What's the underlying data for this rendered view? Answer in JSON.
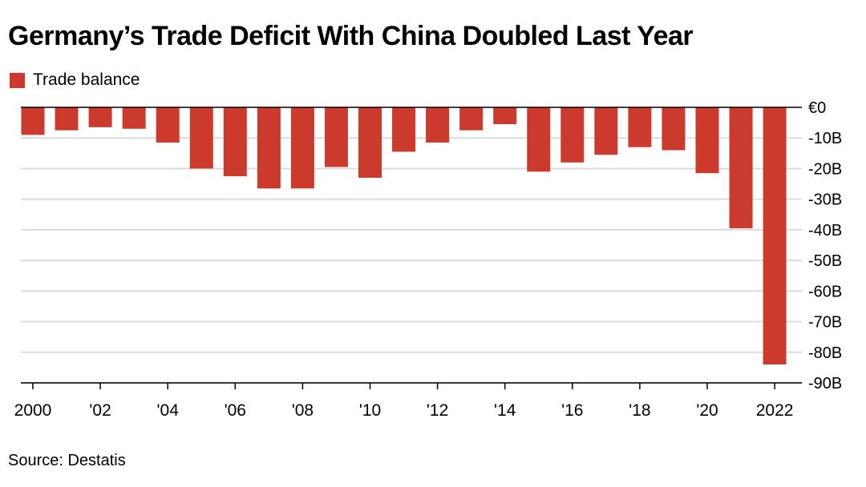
{
  "title": "Germany’s Trade Deficit With China Doubled Last Year",
  "source": "Source: Destatis",
  "colors": {
    "bar": "#cc3a2e",
    "grid": "#dcdcdc",
    "axis": "#000000"
  },
  "chart_data": {
    "type": "bar",
    "title": "Germany’s Trade Deficit With China Doubled Last Year",
    "legend": {
      "position": "top-left",
      "entries": [
        "Trade balance"
      ]
    },
    "series": [
      {
        "name": "Trade balance",
        "x": [
          2000,
          2001,
          2002,
          2003,
          2004,
          2005,
          2006,
          2007,
          2008,
          2009,
          2010,
          2011,
          2012,
          2013,
          2014,
          2015,
          2016,
          2017,
          2018,
          2019,
          2020,
          2021,
          2022
        ],
        "values": [
          -9,
          -7.5,
          -6.5,
          -7,
          -11.5,
          -20,
          -22.5,
          -26.5,
          -26.5,
          -19.5,
          -23,
          -14.5,
          -11.5,
          -7.5,
          -5.5,
          -21,
          -18,
          -15.5,
          -13,
          -14,
          -21.5,
          -39.5,
          -84
        ]
      }
    ],
    "x_tick_labels": [
      {
        "x": 2000,
        "label": "2000"
      },
      {
        "x": 2002,
        "label": "'02"
      },
      {
        "x": 2004,
        "label": "'04"
      },
      {
        "x": 2006,
        "label": "'06"
      },
      {
        "x": 2008,
        "label": "'08"
      },
      {
        "x": 2010,
        "label": "'10"
      },
      {
        "x": 2012,
        "label": "'12"
      },
      {
        "x": 2014,
        "label": "'14"
      },
      {
        "x": 2016,
        "label": "'16"
      },
      {
        "x": 2018,
        "label": "'18"
      },
      {
        "x": 2020,
        "label": "'20"
      },
      {
        "x": 2022,
        "label": "2022"
      }
    ],
    "y_ticks": [
      {
        "value": 0,
        "label": "€0"
      },
      {
        "value": -10,
        "label": "-10B"
      },
      {
        "value": -20,
        "label": "-20B"
      },
      {
        "value": -30,
        "label": "-30B"
      },
      {
        "value": -40,
        "label": "-40B"
      },
      {
        "value": -50,
        "label": "-50B"
      },
      {
        "value": -60,
        "label": "-60B"
      },
      {
        "value": -70,
        "label": "-70B"
      },
      {
        "value": -80,
        "label": "-80B"
      },
      {
        "value": -90,
        "label": "-90B"
      }
    ],
    "ylim": [
      -90,
      0
    ],
    "y_axis_position": "right",
    "grid": true,
    "xlabel": "",
    "ylabel": ""
  }
}
